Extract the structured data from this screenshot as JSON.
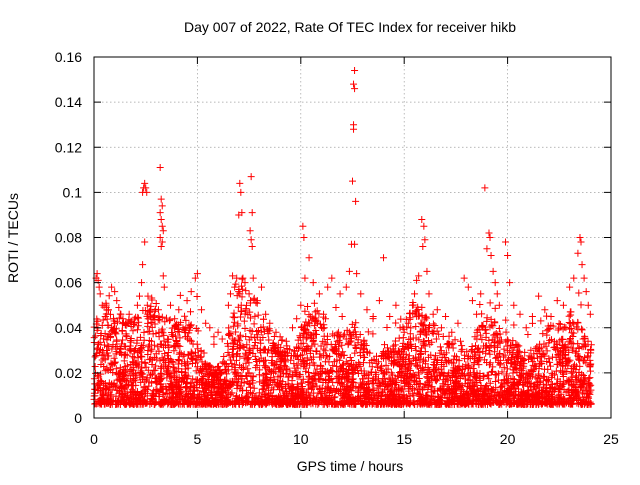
{
  "chart_data": {
    "type": "scatter",
    "title": "Day 007 of 2022, Rate Of TEC Index for receiver hikb",
    "xlabel": "GPS time / hours",
    "ylabel": "ROTI / TECUs",
    "xlim": [
      0,
      25
    ],
    "ylim": [
      0,
      0.16
    ],
    "x_ticks": [
      0,
      5,
      10,
      15,
      20,
      25
    ],
    "x_tick_labels": [
      "0",
      "5",
      "10",
      "15",
      "20",
      "25"
    ],
    "y_ticks": [
      0,
      0.02,
      0.04,
      0.06,
      0.08,
      0.1,
      0.12,
      0.14,
      0.16
    ],
    "y_tick_labels": [
      "0",
      "0.02",
      "0.04",
      "0.06",
      "0.08",
      "0.1",
      "0.12",
      "0.14",
      "0.16"
    ],
    "grid": true,
    "legend": "none",
    "marker": "plus",
    "series": [
      {
        "color": "#ff0000",
        "points": [
          [
            0.1,
            0.062
          ],
          [
            0.15,
            0.064
          ],
          [
            0.2,
            0.061
          ],
          [
            0.25,
            0.058
          ],
          [
            0.3,
            0.055
          ],
          [
            0.4,
            0.05
          ],
          [
            0.55,
            0.045
          ],
          [
            0.7,
            0.048
          ],
          [
            0.85,
            0.058
          ],
          [
            1.0,
            0.056
          ],
          [
            1.1,
            0.052
          ],
          [
            1.2,
            0.049
          ],
          [
            1.3,
            0.046
          ],
          [
            1.4,
            0.044
          ],
          [
            1.55,
            0.041
          ],
          [
            1.7,
            0.046
          ],
          [
            1.8,
            0.043
          ],
          [
            2.35,
            0.1
          ],
          [
            2.4,
            0.102
          ],
          [
            2.45,
            0.104
          ],
          [
            2.5,
            0.102
          ],
          [
            2.55,
            0.1
          ],
          [
            2.45,
            0.078
          ],
          [
            2.35,
            0.068
          ],
          [
            2.3,
            0.06
          ],
          [
            2.1,
            0.05
          ],
          [
            2.2,
            0.054
          ],
          [
            2.6,
            0.046
          ],
          [
            3.2,
            0.111
          ],
          [
            3.25,
            0.097
          ],
          [
            3.3,
            0.094
          ],
          [
            3.2,
            0.091
          ],
          [
            3.25,
            0.088
          ],
          [
            3.3,
            0.085
          ],
          [
            3.35,
            0.083
          ],
          [
            3.2,
            0.08
          ],
          [
            3.3,
            0.078
          ],
          [
            3.25,
            0.076
          ],
          [
            3.35,
            0.063
          ],
          [
            3.4,
            0.058
          ],
          [
            3.7,
            0.05
          ],
          [
            3.9,
            0.044
          ],
          [
            4.1,
            0.048
          ],
          [
            4.3,
            0.04
          ],
          [
            4.5,
            0.052
          ],
          [
            4.7,
            0.056
          ],
          [
            4.9,
            0.062
          ],
          [
            5.0,
            0.064
          ],
          [
            5.2,
            0.048
          ],
          [
            5.4,
            0.042
          ],
          [
            5.6,
            0.04
          ],
          [
            5.8,
            0.036
          ],
          [
            6.0,
            0.038
          ],
          [
            6.2,
            0.035
          ],
          [
            6.5,
            0.05
          ],
          [
            6.6,
            0.055
          ],
          [
            6.7,
            0.063
          ],
          [
            6.8,
            0.058
          ],
          [
            6.9,
            0.062
          ],
          [
            7.0,
            0.09
          ],
          [
            7.05,
            0.104
          ],
          [
            7.1,
            0.1
          ],
          [
            7.15,
            0.091
          ],
          [
            7.2,
            0.062
          ],
          [
            7.3,
            0.06
          ],
          [
            7.5,
            0.055
          ],
          [
            7.6,
            0.107
          ],
          [
            7.65,
            0.091
          ],
          [
            7.55,
            0.083
          ],
          [
            7.6,
            0.079
          ],
          [
            7.65,
            0.076
          ],
          [
            7.7,
            0.062
          ],
          [
            7.9,
            0.052
          ],
          [
            8.1,
            0.058
          ],
          [
            8.3,
            0.046
          ],
          [
            8.5,
            0.042
          ],
          [
            8.8,
            0.038
          ],
          [
            9.0,
            0.036
          ],
          [
            9.3,
            0.034
          ],
          [
            9.6,
            0.04
          ],
          [
            9.8,
            0.044
          ],
          [
            10.0,
            0.05
          ],
          [
            10.1,
            0.085
          ],
          [
            10.15,
            0.08
          ],
          [
            10.2,
            0.062
          ],
          [
            10.4,
            0.071
          ],
          [
            10.6,
            0.06
          ],
          [
            10.9,
            0.055
          ],
          [
            11.1,
            0.046
          ],
          [
            11.3,
            0.058
          ],
          [
            11.5,
            0.062
          ],
          [
            11.7,
            0.049
          ],
          [
            11.9,
            0.055
          ],
          [
            12.0,
            0.045
          ],
          [
            12.2,
            0.058
          ],
          [
            12.35,
            0.065
          ],
          [
            12.45,
            0.077
          ],
          [
            12.5,
            0.105
          ],
          [
            12.55,
            0.13
          ],
          [
            12.6,
            0.154
          ],
          [
            12.55,
            0.148
          ],
          [
            12.6,
            0.146
          ],
          [
            12.55,
            0.128
          ],
          [
            12.65,
            0.096
          ],
          [
            12.6,
            0.077
          ],
          [
            12.7,
            0.064
          ],
          [
            12.9,
            0.055
          ],
          [
            13.2,
            0.048
          ],
          [
            13.5,
            0.045
          ],
          [
            13.8,
            0.052
          ],
          [
            14.0,
            0.071
          ],
          [
            14.3,
            0.045
          ],
          [
            14.6,
            0.05
          ],
          [
            14.8,
            0.04
          ],
          [
            15.0,
            0.038
          ],
          [
            15.2,
            0.042
          ],
          [
            15.4,
            0.05
          ],
          [
            15.5,
            0.055
          ],
          [
            15.6,
            0.061
          ],
          [
            15.7,
            0.063
          ],
          [
            15.85,
            0.088
          ],
          [
            15.95,
            0.085
          ],
          [
            16.0,
            0.079
          ],
          [
            15.9,
            0.076
          ],
          [
            16.1,
            0.065
          ],
          [
            16.2,
            0.055
          ],
          [
            16.4,
            0.046
          ],
          [
            16.6,
            0.048
          ],
          [
            16.8,
            0.04
          ],
          [
            17.0,
            0.045
          ],
          [
            17.3,
            0.038
          ],
          [
            17.6,
            0.042
          ],
          [
            17.9,
            0.062
          ],
          [
            18.1,
            0.058
          ],
          [
            18.3,
            0.052
          ],
          [
            18.5,
            0.046
          ],
          [
            18.7,
            0.055
          ],
          [
            18.9,
            0.102
          ],
          [
            19.0,
            0.075
          ],
          [
            19.1,
            0.082
          ],
          [
            19.15,
            0.08
          ],
          [
            19.2,
            0.072
          ],
          [
            19.3,
            0.065
          ],
          [
            19.4,
            0.06
          ],
          [
            19.5,
            0.055
          ],
          [
            19.6,
            0.05
          ],
          [
            19.9,
            0.078
          ],
          [
            20.0,
            0.072
          ],
          [
            20.1,
            0.06
          ],
          [
            20.3,
            0.05
          ],
          [
            20.6,
            0.046
          ],
          [
            20.9,
            0.04
          ],
          [
            21.2,
            0.045
          ],
          [
            21.5,
            0.054
          ],
          [
            21.8,
            0.048
          ],
          [
            22.1,
            0.045
          ],
          [
            22.4,
            0.052
          ],
          [
            22.7,
            0.05
          ],
          [
            23.0,
            0.058
          ],
          [
            23.2,
            0.062
          ],
          [
            23.4,
            0.073
          ],
          [
            23.5,
            0.08
          ],
          [
            23.55,
            0.078
          ],
          [
            23.6,
            0.068
          ],
          [
            23.7,
            0.062
          ],
          [
            23.8,
            0.056
          ],
          [
            23.9,
            0.05
          ],
          [
            24.0,
            0.046
          ]
        ]
      }
    ]
  }
}
